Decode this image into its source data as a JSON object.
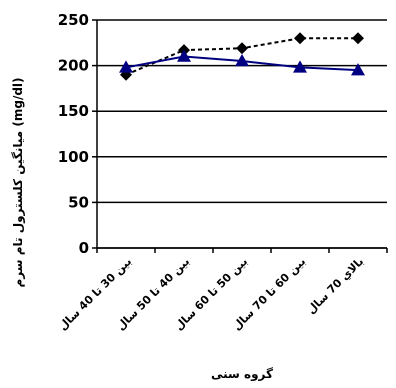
{
  "chart_data": {
    "type": "line",
    "xlabel": "گروه سنی",
    "ylabel": "میانگین کلسترول تام سرم (mg/dl)",
    "ylim": [
      0,
      250
    ],
    "yticks": [
      0,
      50,
      100,
      150,
      200,
      250
    ],
    "grid": true,
    "categories": [
      "بين 30 تا 40 سال",
      "بين 40 تا 50 سال",
      "بين 50 تا 60 سال",
      "بين 60 تا 70 سال",
      "بالاي 70 سال"
    ],
    "series": [
      {
        "values": [
          190,
          217,
          219,
          230,
          230
        ],
        "color": "#000000",
        "line_style": "dashed",
        "marker": "diamond"
      },
      {
        "values": [
          198,
          210,
          205,
          198,
          195
        ],
        "color": "#000080",
        "line_style": "solid",
        "marker": "triangle"
      }
    ]
  }
}
